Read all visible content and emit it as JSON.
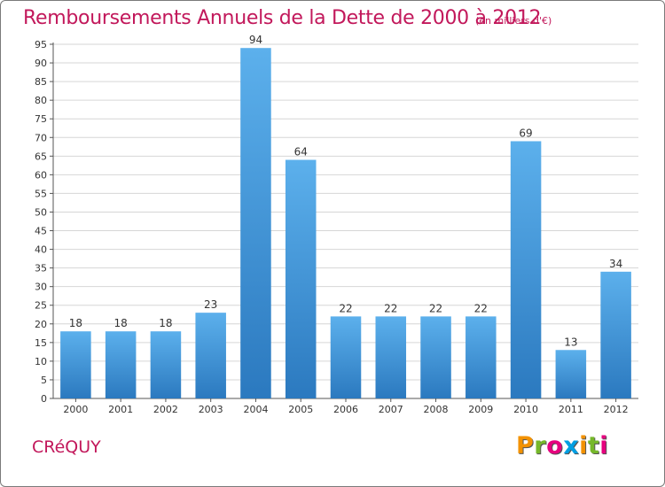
{
  "chart_data": {
    "type": "bar",
    "title": "Remboursements Annuels de la Dette de 2000 à 2012",
    "subtitle": "(en milliers d'€)",
    "categories": [
      "2000",
      "2001",
      "2002",
      "2003",
      "2004",
      "2005",
      "2006",
      "2007",
      "2008",
      "2009",
      "2010",
      "2011",
      "2012"
    ],
    "values": [
      18,
      18,
      18,
      23,
      94,
      64,
      22,
      22,
      22,
      22,
      69,
      13,
      34
    ],
    "ylim": [
      0,
      95
    ],
    "yticks": [
      0,
      5,
      10,
      15,
      20,
      25,
      30,
      35,
      40,
      45,
      50,
      55,
      60,
      65,
      70,
      75,
      80,
      85,
      90,
      95
    ],
    "xlabel": "",
    "ylabel": "",
    "grid": true,
    "bar_color": "#3f95d9",
    "bar_color_light": "#5cb0ec",
    "bar_color_dark": "#2b79bf"
  },
  "commune": "CRéQUY",
  "logo": {
    "letters": [
      "P",
      "r",
      "o",
      "x",
      "i",
      "t",
      "i"
    ],
    "colors": [
      "#f39200",
      "#76b82a",
      "#e6007e",
      "#009fe3",
      "#f39200",
      "#76b82a",
      "#e6007e"
    ]
  }
}
